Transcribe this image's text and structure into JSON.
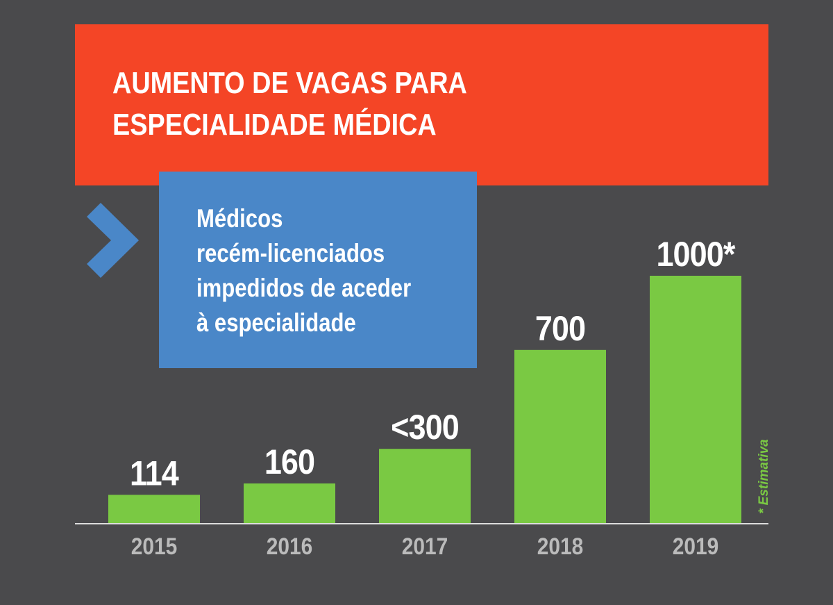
{
  "title_lines": [
    "AUMENTO DE VAGAS PARA",
    "ESPECIALIDADE MÉDICA"
  ],
  "subtitle_lines": [
    "Médicos",
    "recém-licenciados",
    "impedidos de aceder",
    "à especialidade"
  ],
  "footnote": "* Estimativa",
  "colors": {
    "background": "#4a4a4c",
    "banner": "#f44526",
    "box": "#4a87c8",
    "bar": "#7ac943",
    "axis": "#dddddd",
    "year_label": "#bbbbbb"
  },
  "chart_data": {
    "type": "bar",
    "categories": [
      "2015",
      "2016",
      "2017",
      "2018",
      "2019"
    ],
    "values": [
      114,
      160,
      300,
      700,
      1000
    ],
    "data_labels": [
      "114",
      "160",
      "<300",
      "700",
      "1000*"
    ],
    "ylim": [
      0,
      1000
    ],
    "grid": false,
    "xlabel": "",
    "ylabel": ""
  }
}
